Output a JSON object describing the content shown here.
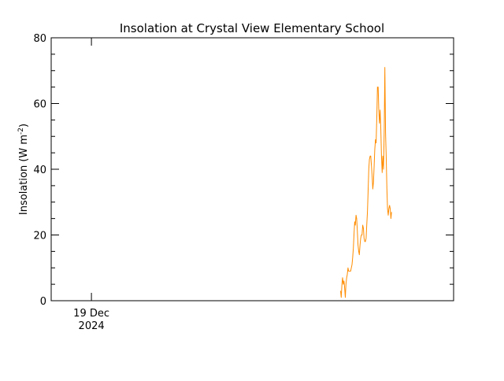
{
  "chart_data": {
    "type": "line",
    "title": "Insolation at Crystal View Elementary School",
    "ylabel_text": "Insolation (W m",
    "ylabel_sup": "-2",
    "ylabel_close": ")",
    "xlabel": "",
    "ylim": [
      0,
      80
    ],
    "xlim": [
      "2024-12-18T20:00",
      "2024-12-20T12:00"
    ],
    "y_ticks": [
      0,
      20,
      40,
      60,
      80
    ],
    "x_tick_label_line1": "19 Dec",
    "x_tick_label_line2": "2024",
    "x_major_tick": "2024-12-19T00:00",
    "grid": false,
    "legend": "none",
    "series": [
      {
        "color": "#FF8C00",
        "points": [
          [
            "2024-12-20T00:46",
            3
          ],
          [
            "2024-12-20T00:50",
            1
          ],
          [
            "2024-12-20T00:54",
            5
          ],
          [
            "2024-12-20T00:58",
            7
          ],
          [
            "2024-12-20T01:02",
            5
          ],
          [
            "2024-12-20T01:06",
            6
          ],
          [
            "2024-12-20T01:10",
            4
          ],
          [
            "2024-12-20T01:14",
            1
          ],
          [
            "2024-12-20T01:18",
            5
          ],
          [
            "2024-12-20T01:22",
            7
          ],
          [
            "2024-12-20T01:26",
            8
          ],
          [
            "2024-12-20T01:30",
            10
          ],
          [
            "2024-12-20T01:34",
            9
          ],
          [
            "2024-12-20T01:38",
            9
          ],
          [
            "2024-12-20T01:42",
            9
          ],
          [
            "2024-12-20T01:46",
            9
          ],
          [
            "2024-12-20T01:50",
            10
          ],
          [
            "2024-12-20T01:54",
            11
          ],
          [
            "2024-12-20T01:58",
            13
          ],
          [
            "2024-12-20T02:02",
            16
          ],
          [
            "2024-12-20T02:06",
            20
          ],
          [
            "2024-12-20T02:10",
            24
          ],
          [
            "2024-12-20T02:14",
            23
          ],
          [
            "2024-12-20T02:18",
            26
          ],
          [
            "2024-12-20T02:22",
            25
          ],
          [
            "2024-12-20T02:26",
            21
          ],
          [
            "2024-12-20T02:30",
            17
          ],
          [
            "2024-12-20T02:34",
            15
          ],
          [
            "2024-12-20T02:38",
            14
          ],
          [
            "2024-12-20T02:42",
            17
          ],
          [
            "2024-12-20T02:46",
            19
          ],
          [
            "2024-12-20T02:50",
            20
          ],
          [
            "2024-12-20T02:54",
            20
          ],
          [
            "2024-12-20T02:58",
            23
          ],
          [
            "2024-12-20T03:02",
            22
          ],
          [
            "2024-12-20T03:06",
            19
          ],
          [
            "2024-12-20T03:10",
            18
          ],
          [
            "2024-12-20T03:14",
            18
          ],
          [
            "2024-12-20T03:18",
            19
          ],
          [
            "2024-12-20T03:22",
            23
          ],
          [
            "2024-12-20T03:26",
            27
          ],
          [
            "2024-12-20T03:30",
            33
          ],
          [
            "2024-12-20T03:34",
            40
          ],
          [
            "2024-12-20T03:38",
            43
          ],
          [
            "2024-12-20T03:42",
            44
          ],
          [
            "2024-12-20T03:46",
            44
          ],
          [
            "2024-12-20T03:50",
            41
          ],
          [
            "2024-12-20T03:54",
            38
          ],
          [
            "2024-12-20T03:58",
            34
          ],
          [
            "2024-12-20T04:02",
            36
          ],
          [
            "2024-12-20T04:06",
            41
          ],
          [
            "2024-12-20T04:10",
            46
          ],
          [
            "2024-12-20T04:14",
            49
          ],
          [
            "2024-12-20T04:18",
            48
          ],
          [
            "2024-12-20T04:22",
            56
          ],
          [
            "2024-12-20T04:26",
            65
          ],
          [
            "2024-12-20T04:30",
            65
          ],
          [
            "2024-12-20T04:34",
            58
          ],
          [
            "2024-12-20T04:38",
            54
          ],
          [
            "2024-12-20T04:42",
            58
          ],
          [
            "2024-12-20T04:46",
            52
          ],
          [
            "2024-12-20T04:50",
            44
          ],
          [
            "2024-12-20T04:54",
            39
          ],
          [
            "2024-12-20T04:58",
            44
          ],
          [
            "2024-12-20T05:02",
            40
          ],
          [
            "2024-12-20T05:06",
            52
          ],
          [
            "2024-12-20T05:10",
            71
          ],
          [
            "2024-12-20T05:14",
            51
          ],
          [
            "2024-12-20T05:18",
            44
          ],
          [
            "2024-12-20T05:22",
            34
          ],
          [
            "2024-12-20T05:26",
            28
          ],
          [
            "2024-12-20T05:30",
            26
          ],
          [
            "2024-12-20T05:34",
            28
          ],
          [
            "2024-12-20T05:38",
            29
          ],
          [
            "2024-12-20T05:42",
            28
          ],
          [
            "2024-12-20T05:46",
            25
          ],
          [
            "2024-12-20T05:50",
            27
          ]
        ]
      }
    ]
  }
}
